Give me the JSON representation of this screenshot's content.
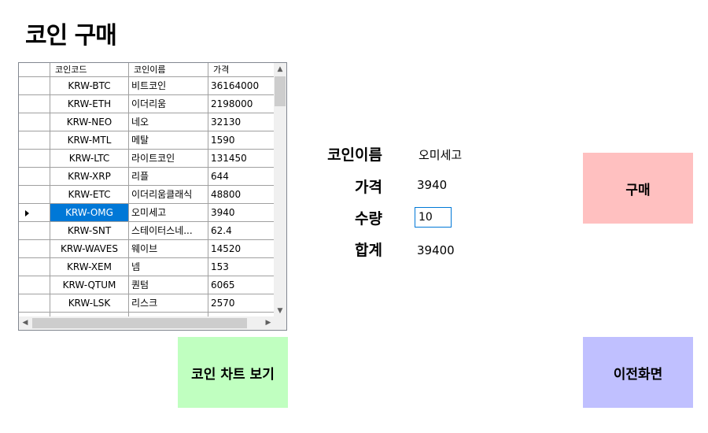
{
  "title": "코인 구매",
  "grid": {
    "headers": [
      "코인코드",
      "코인이름",
      "가격"
    ],
    "rows": [
      {
        "code": "KRW-BTC",
        "name": "비트코인",
        "price": "36164000"
      },
      {
        "code": "KRW-ETH",
        "name": "이더리움",
        "price": "2198000"
      },
      {
        "code": "KRW-NEO",
        "name": "네오",
        "price": "32130"
      },
      {
        "code": "KRW-MTL",
        "name": "메탈",
        "price": "1590"
      },
      {
        "code": "KRW-LTC",
        "name": "라이트코인",
        "price": "131450"
      },
      {
        "code": "KRW-XRP",
        "name": "리플",
        "price": "644"
      },
      {
        "code": "KRW-ETC",
        "name": "이더리움클래식",
        "price": "48800"
      },
      {
        "code": "KRW-OMG",
        "name": "오미세고",
        "price": "3940"
      },
      {
        "code": "KRW-SNT",
        "name": "스테이터스네...",
        "price": "62.4"
      },
      {
        "code": "KRW-WAVES",
        "name": "웨이브",
        "price": "14520"
      },
      {
        "code": "KRW-XEM",
        "name": "넴",
        "price": "153"
      },
      {
        "code": "KRW-QTUM",
        "name": "퀀텀",
        "price": "6065"
      },
      {
        "code": "KRW-LSK",
        "name": "리스크",
        "price": "2570"
      },
      {
        "code": "",
        "name": "",
        "price": ""
      }
    ],
    "selected_index": 7
  },
  "form": {
    "coin_name_label": "코인이름",
    "coin_name_value": "오미세고",
    "price_label": "가격",
    "price_value": "3940",
    "quantity_label": "수량",
    "quantity_value": "10",
    "total_label": "합계",
    "total_value": "39400"
  },
  "buttons": {
    "buy": "구매",
    "chart": "코인 차트 보기",
    "back": "이전화면"
  },
  "colors": {
    "buy_bg": "#ffc0c0",
    "chart_bg": "#c0ffc0",
    "back_bg": "#c0c0ff",
    "selected_bg": "#0078d7"
  },
  "icons": {
    "row_marker": "row-pointer-icon",
    "scroll_up": "chevron-up-icon",
    "scroll_down": "chevron-down-icon",
    "scroll_left": "chevron-left-icon",
    "scroll_right": "chevron-right-icon"
  }
}
